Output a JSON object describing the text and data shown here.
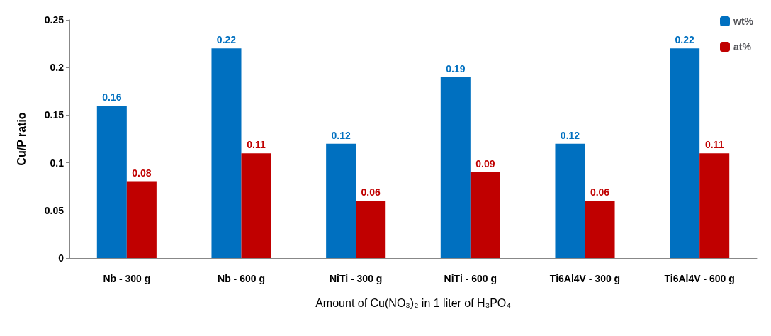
{
  "chart_data": {
    "type": "bar",
    "xlabel": "Amount of Cu(NO₃)₂ in 1 liter of H₃PO₄",
    "ylabel": "Cu/P ratio",
    "categories": [
      "Nb - 300 g",
      "Nb - 600 g",
      "NiTi - 300 g",
      "NiTi - 600 g",
      "Ti6Al4V - 300 g",
      "Ti6Al4V - 600 g"
    ],
    "series": [
      {
        "name": "wt%",
        "color": "#0070c0",
        "values": [
          0.16,
          0.22,
          0.12,
          0.19,
          0.12,
          0.22
        ]
      },
      {
        "name": "at%",
        "color": "#c00000",
        "values": [
          0.08,
          0.11,
          0.06,
          0.09,
          0.06,
          0.11
        ]
      }
    ],
    "ylim": [
      0,
      0.25
    ],
    "yticks": [
      0,
      0.05,
      0.1,
      0.15,
      0.2,
      0.25
    ],
    "data_labels": true,
    "legend": "top right",
    "grid": false
  }
}
